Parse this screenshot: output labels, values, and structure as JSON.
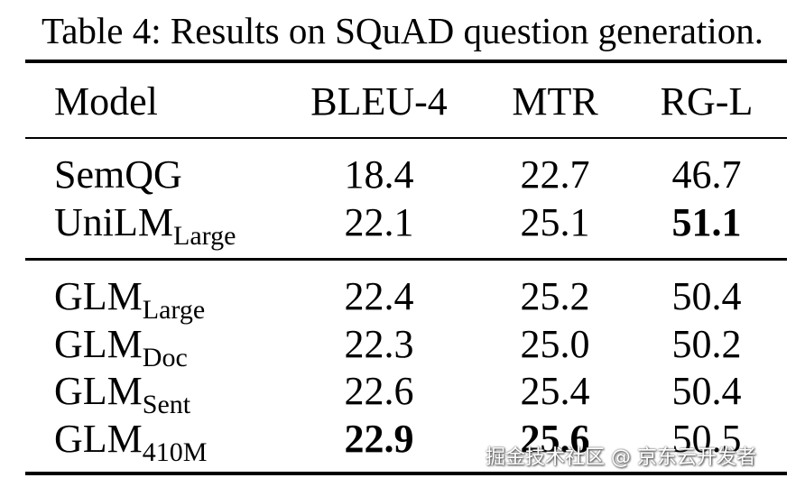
{
  "caption": "Table 4: Results on SQuAD question generation.",
  "table": {
    "header": [
      "Model",
      "BLEU-4",
      "MTR",
      "RG-L"
    ],
    "groups": [
      [
        {
          "model": "SemQG",
          "cells": [
            "18.4",
            "22.7",
            "46.7"
          ],
          "bold": [
            false,
            false,
            false
          ]
        },
        {
          "model": "UniLM",
          "sub": "Large",
          "cells": [
            "22.1",
            "25.1",
            "51.1"
          ],
          "bold": [
            false,
            false,
            true
          ]
        }
      ],
      [
        {
          "model": "GLM",
          "sub": "Large",
          "cells": [
            "22.4",
            "25.2",
            "50.4"
          ],
          "bold": [
            false,
            false,
            false
          ]
        },
        {
          "model": "GLM",
          "sub": "Doc",
          "cells": [
            "22.3",
            "25.0",
            "50.2"
          ],
          "bold": [
            false,
            false,
            false
          ]
        },
        {
          "model": "GLM",
          "sub": "Sent",
          "cells": [
            "22.6",
            "25.4",
            "50.4"
          ],
          "bold": [
            false,
            false,
            false
          ]
        },
        {
          "model": "GLM",
          "sub": "410M",
          "cells": [
            "22.9",
            "25.6",
            "50.5"
          ],
          "bold": [
            true,
            true,
            false
          ]
        }
      ]
    ]
  },
  "watermark": "掘金技术社区 @ 京东云开发者"
}
